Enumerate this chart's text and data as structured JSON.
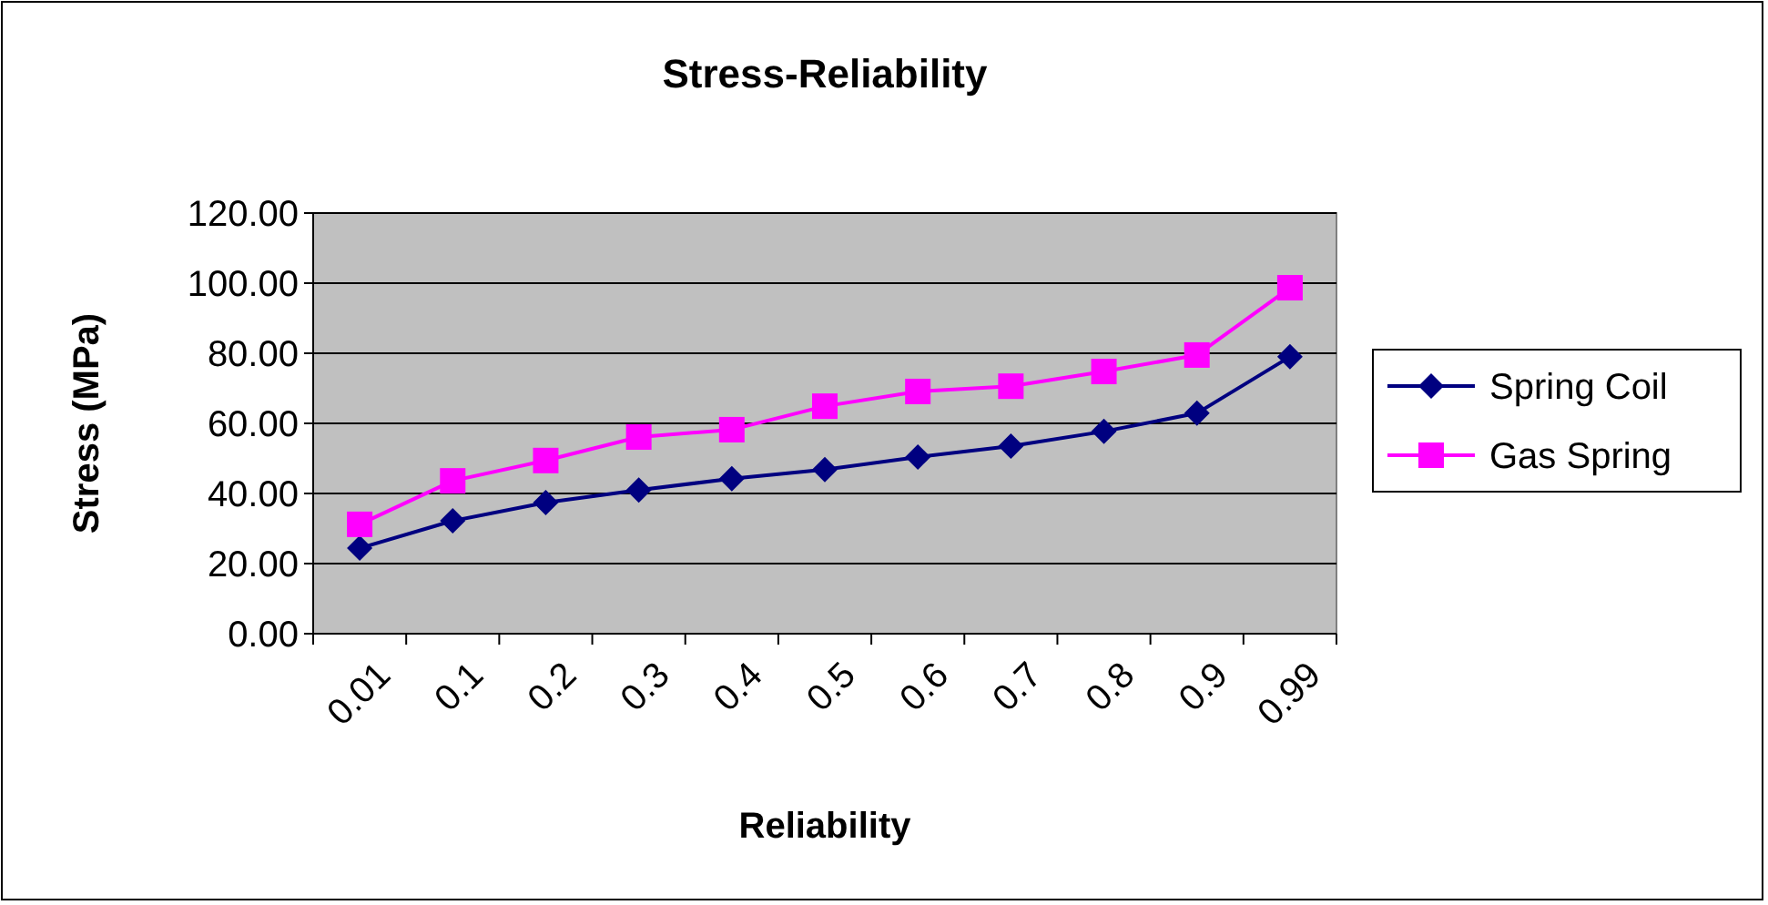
{
  "chart_data": {
    "type": "line",
    "title": "Stress-Reliability",
    "xlabel": "Reliability",
    "ylabel": "Stress (MPa)",
    "categories": [
      "0.01",
      "0.1",
      "0.2",
      "0.3",
      "0.4",
      "0.5",
      "0.6",
      "0.7",
      "0.8",
      "0.9",
      "0.99"
    ],
    "series": [
      {
        "name": "Spring Coil",
        "color": "#000080",
        "marker": "diamond",
        "values": [
          24.4,
          32.2,
          37.4,
          41.0,
          44.2,
          46.8,
          50.4,
          53.5,
          57.7,
          62.9,
          79.0
        ]
      },
      {
        "name": "Gas Spring",
        "color": "#ff00ff",
        "marker": "square",
        "values": [
          31.2,
          43.6,
          49.4,
          56.1,
          58.2,
          64.9,
          69.1,
          70.6,
          74.8,
          79.5,
          98.7
        ]
      }
    ],
    "ylim": [
      0,
      120
    ],
    "yticks": [
      {
        "value": 0,
        "label": "0.00"
      },
      {
        "value": 20,
        "label": "20.00"
      },
      {
        "value": 40,
        "label": "40.00"
      },
      {
        "value": 60,
        "label": "60.00"
      },
      {
        "value": 80,
        "label": "80.00"
      },
      {
        "value": 100,
        "label": "100.00"
      },
      {
        "value": 120,
        "label": "120.00"
      }
    ],
    "grid": "y",
    "legend": "right"
  }
}
